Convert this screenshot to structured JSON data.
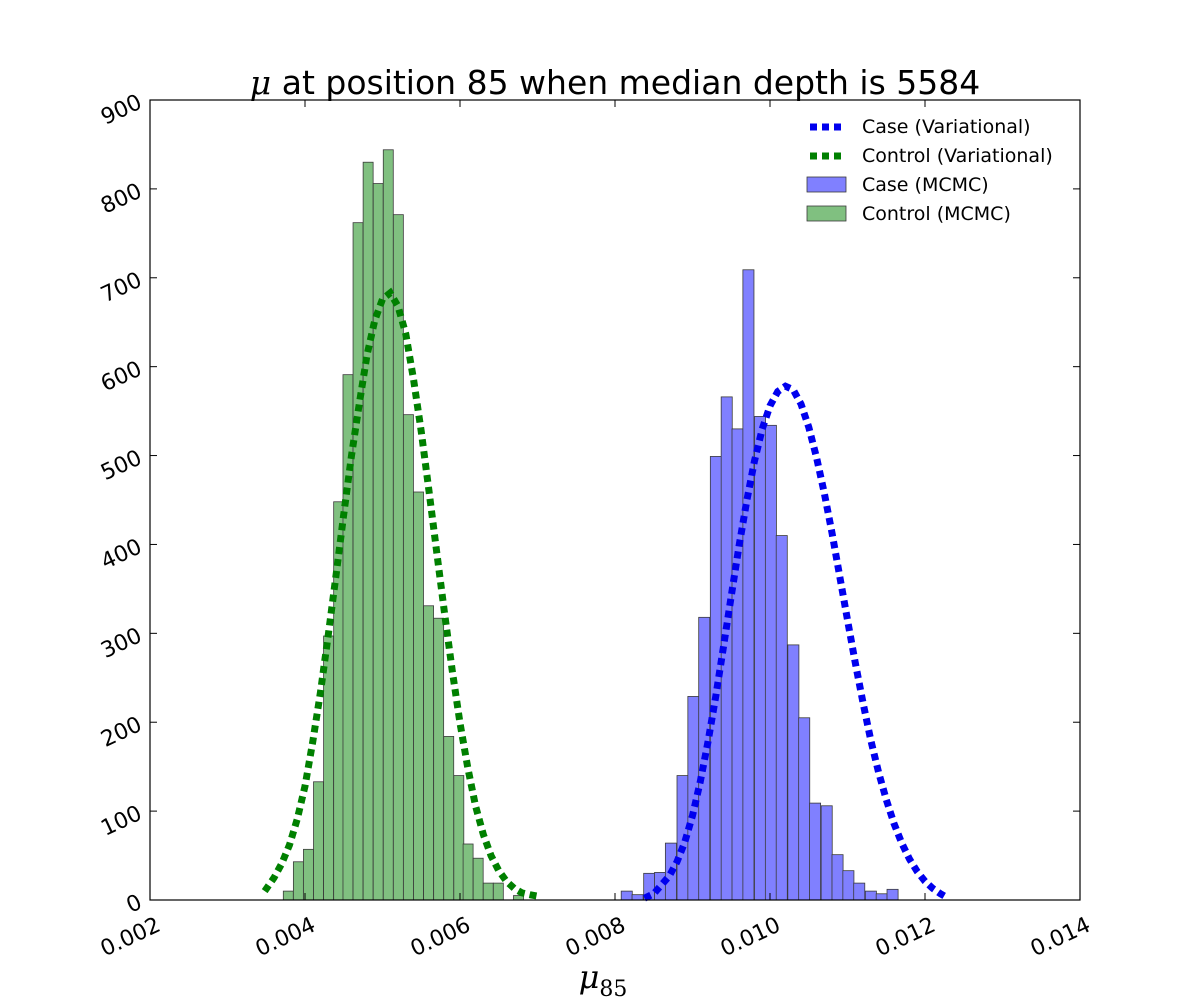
{
  "chart_data": {
    "type": "histogram",
    "title": "at position 85 when median depth is 5584",
    "title_symbol": "μ",
    "xlabel_symbol": "μ",
    "xlabel_subscript": "85",
    "ylabel": "",
    "xlim": [
      0.002,
      0.014
    ],
    "ylim": [
      0,
      900
    ],
    "xticks": [
      "0.002",
      "0.004",
      "0.006",
      "0.008",
      "0.010",
      "0.012",
      "0.014"
    ],
    "yticks": [
      "0",
      "100",
      "200",
      "300",
      "400",
      "500",
      "600",
      "700",
      "800",
      "900"
    ],
    "grid": false,
    "legend_position": "top-right",
    "colors": {
      "case_hist": "#8080ff",
      "control_hist": "#80c080",
      "case_curve": "#0000ee",
      "control_curve": "#008000"
    },
    "legend": [
      {
        "label": "Case (Variational)",
        "kind": "dotted-line",
        "color": "#0000ee"
      },
      {
        "label": "Control (Variational)",
        "kind": "dotted-line",
        "color": "#008000"
      },
      {
        "label": "Case (MCMC)",
        "kind": "patch",
        "color": "#8080ff"
      },
      {
        "label": "Control (MCMC)",
        "kind": "patch",
        "color": "#80c080"
      }
    ],
    "series": [
      {
        "name": "Control (MCMC)",
        "kind": "histogram",
        "bin_width": 0.000129,
        "bin_starts": [
          0.00372,
          0.00385,
          0.00398,
          0.00411,
          0.00424,
          0.00437,
          0.00449,
          0.00462,
          0.00475,
          0.00488,
          0.00501,
          0.00514,
          0.00527,
          0.0054,
          0.00553,
          0.00566,
          0.00579,
          0.00592,
          0.00604,
          0.00617,
          0.0063,
          0.00643,
          0.00656,
          0.00669,
          0.00682
        ],
        "counts": [
          10,
          43,
          57,
          133,
          297,
          448,
          591,
          762,
          830,
          806,
          844,
          771,
          546,
          459,
          331,
          317,
          184,
          140,
          63,
          47,
          19,
          19,
          0,
          5,
          0
        ]
      },
      {
        "name": "Case (MCMC)",
        "kind": "histogram",
        "bin_width": 0.000143,
        "bin_starts": [
          0.00808,
          0.00822,
          0.00837,
          0.00851,
          0.00865,
          0.0088,
          0.00894,
          0.00908,
          0.00923,
          0.00937,
          0.00951,
          0.00965,
          0.0098,
          0.00994,
          0.01008,
          0.01023,
          0.01037,
          0.01051,
          0.01066,
          0.0108,
          0.01094,
          0.01108,
          0.01123,
          0.01137,
          0.01151,
          0.01166,
          0.0118,
          0.01194,
          0.01209,
          0.01223
        ],
        "counts": [
          10,
          6,
          30,
          31,
          64,
          140,
          229,
          318,
          499,
          566,
          530,
          709,
          544,
          534,
          410,
          287,
          205,
          109,
          106,
          51,
          33,
          19,
          10,
          7,
          12,
          0,
          0,
          0,
          0,
          0
        ]
      },
      {
        "name": "Control (Variational)",
        "kind": "curve",
        "x": [
          0.00348,
          0.0036,
          0.0037,
          0.0038,
          0.0039,
          0.004,
          0.0041,
          0.0042,
          0.0043,
          0.0044,
          0.0045,
          0.0046,
          0.0047,
          0.0048,
          0.0049,
          0.005,
          0.0051,
          0.0052,
          0.0053,
          0.0054,
          0.0055,
          0.0056,
          0.0057,
          0.0058,
          0.0059,
          0.006,
          0.0061,
          0.0062,
          0.0063,
          0.0064,
          0.0065,
          0.0066,
          0.0067,
          0.0068,
          0.0069,
          0.00702
        ],
        "y": [
          10,
          25,
          41,
          62,
          91,
          128,
          178,
          234,
          298,
          365,
          434,
          500,
          558,
          613,
          652,
          676,
          683,
          668,
          637,
          586,
          527,
          460,
          391,
          323,
          258,
          199,
          149,
          106,
          74,
          50,
          33,
          21,
          13,
          8,
          6,
          4
        ]
      },
      {
        "name": "Case (Variational)",
        "kind": "curve",
        "x": [
          0.00838,
          0.0085,
          0.0086,
          0.0087,
          0.0088,
          0.0089,
          0.009,
          0.0091,
          0.0092,
          0.0093,
          0.0094,
          0.0095,
          0.0096,
          0.0097,
          0.0098,
          0.0099,
          0.01,
          0.0101,
          0.0102,
          0.0103,
          0.0104,
          0.0105,
          0.0106,
          0.0107,
          0.0108,
          0.0109,
          0.011,
          0.0111,
          0.0112,
          0.0113,
          0.0114,
          0.0115,
          0.0116,
          0.0117,
          0.0118,
          0.0119,
          0.012,
          0.0121,
          0.0122,
          0.01226
        ],
        "y": [
          2,
          7,
          17,
          27,
          43,
          65,
          95,
          133,
          178,
          229,
          285,
          342,
          398,
          449,
          494,
          530,
          556,
          572,
          578,
          574,
          558,
          532,
          498,
          458,
          413,
          364,
          315,
          267,
          222,
          180,
          144,
          113,
          86,
          64,
          46,
          32,
          21,
          13,
          7,
          4
        ]
      }
    ]
  }
}
